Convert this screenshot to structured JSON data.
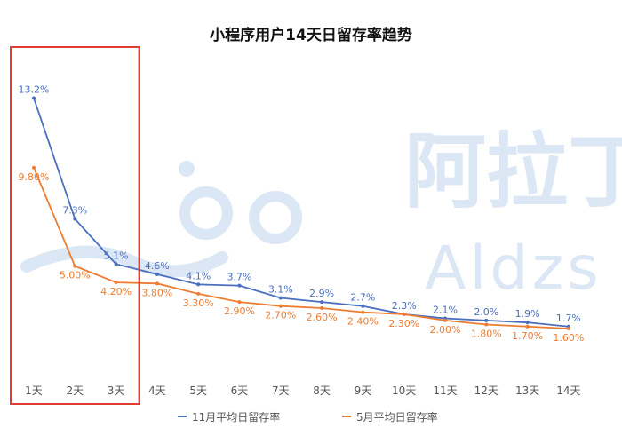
{
  "chart_data": {
    "type": "line",
    "title": "小程序用户14天日留存率趋势",
    "categories": [
      "1天",
      "2天",
      "3天",
      "4天",
      "5天",
      "6天",
      "7天",
      "8天",
      "9天",
      "10天",
      "11天",
      "12天",
      "13天",
      "14天"
    ],
    "xlabel": "",
    "ylabel": "",
    "ylim": [
      0,
      14
    ],
    "grid": false,
    "legend_position": "bottom",
    "series": [
      {
        "name": "11月平均日留存率",
        "color": "#4a6fbf",
        "values": [
          13.2,
          7.3,
          5.1,
          4.6,
          4.1,
          3.7,
          3.1,
          2.9,
          2.7,
          2.3,
          2.1,
          2.0,
          1.9,
          1.7
        ],
        "labels": [
          "13.2%",
          "7.3%",
          "5.1%",
          "4.6%",
          "4.1%",
          "3.7%",
          "3.1%",
          "2.9%",
          "2.7%",
          "2.3%",
          "2.1%",
          "2.0%",
          "1.9%",
          "1.7%"
        ]
      },
      {
        "name": "5月平均日留存率",
        "color": "#ed7d31",
        "values": [
          9.8,
          5.0,
          4.2,
          3.8,
          3.3,
          2.9,
          2.7,
          2.6,
          2.4,
          2.3,
          2.0,
          1.8,
          1.7,
          1.6
        ],
        "labels": [
          "9.80%",
          "5.00%",
          "4.20%",
          "3.80%",
          "3.30%",
          "2.90%",
          "2.70%",
          "2.60%",
          "2.40%",
          "2.30%",
          "2.00%",
          "1.80%",
          "1.70%",
          "1.60%"
        ]
      }
    ],
    "highlight": {
      "from": "1天",
      "to": "3天",
      "color": "#e03c31"
    }
  },
  "watermark": {
    "text": "阿拉丁",
    "subtext": "Aldzs",
    "color": "#dce7f5"
  }
}
